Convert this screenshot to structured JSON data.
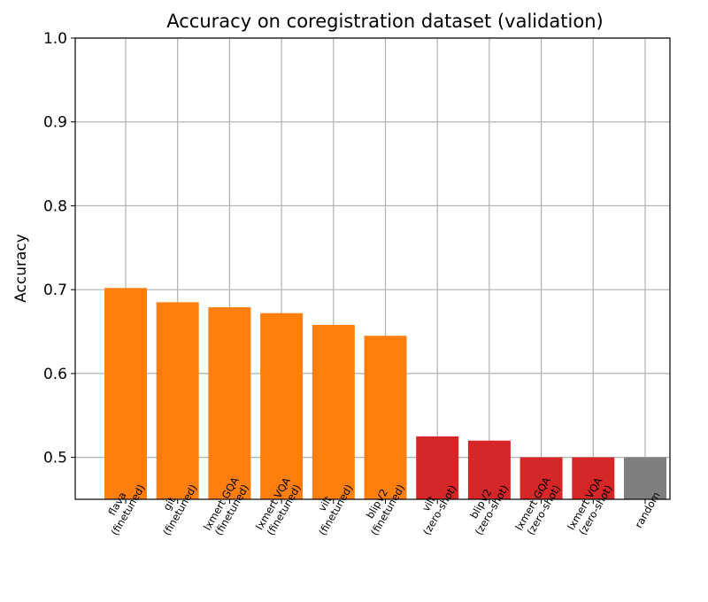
{
  "chart_data": {
    "type": "bar",
    "title": "Accuracy on coregistration dataset (validation)",
    "xlabel": "",
    "ylabel": "Accuracy",
    "ylim": [
      0.45,
      1.0
    ],
    "yticks": [
      "0.5",
      "0.6",
      "0.7",
      "0.8",
      "0.9",
      "1.0"
    ],
    "grid": true,
    "categories": [
      [
        "flava",
        "(finetuned)"
      ],
      [
        "git",
        "(finetuned)"
      ],
      [
        "lxmert GQA",
        "(finetuned)"
      ],
      [
        "lxmert VQA",
        "(finetuned)"
      ],
      [
        "vilt",
        "(finetuned)"
      ],
      [
        "blipV2",
        "(finetuned)"
      ],
      [
        "vilt",
        "(zero-shot)"
      ],
      [
        "blipV2",
        "(zero-shot)"
      ],
      [
        "lxmert GQA",
        "(zero-shot)"
      ],
      [
        "lxmert VQA",
        "(zero-shot)"
      ],
      [
        "random"
      ]
    ],
    "values": [
      0.702,
      0.685,
      0.679,
      0.672,
      0.658,
      0.645,
      0.525,
      0.52,
      0.5,
      0.5,
      0.5
    ],
    "colors": [
      "#ff7f0e",
      "#ff7f0e",
      "#ff7f0e",
      "#ff7f0e",
      "#ff7f0e",
      "#ff7f0e",
      "#d62728",
      "#d62728",
      "#d62728",
      "#d62728",
      "#7f7f7f"
    ]
  }
}
